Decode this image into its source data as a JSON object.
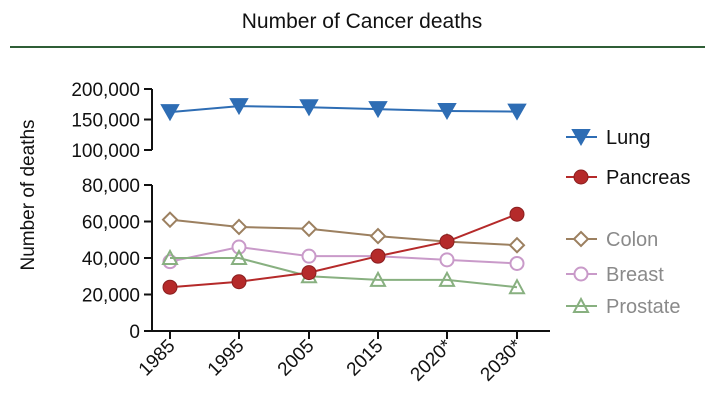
{
  "chart_data": {
    "type": "line",
    "title": "Number of Cancer deaths",
    "xlabel": "",
    "ylabel": "Number of deaths",
    "categories": [
      "1985",
      "1995",
      "2005",
      "2015",
      "2020*",
      "2030*"
    ],
    "y_axis": {
      "broken": true,
      "lower_range": [
        0,
        80000
      ],
      "upper_range": [
        100000,
        200000
      ],
      "lower_ticks": [
        0,
        20000,
        40000,
        60000,
        80000
      ],
      "upper_ticks": [
        100000,
        150000,
        200000
      ],
      "tick_labels_lower": [
        "0",
        "20,000",
        "40,000",
        "60,000",
        "80,000"
      ],
      "tick_labels_upper": [
        "100,000",
        "150,000",
        "200,000"
      ]
    },
    "grid": false,
    "legend_position": "right",
    "series": [
      {
        "name": "Lung",
        "color": "#2e6db4",
        "marker": "triangle-down-filled",
        "values": [
          162000,
          172000,
          170000,
          167000,
          164000,
          163000
        ]
      },
      {
        "name": "Pancreas",
        "color": "#b52a2a",
        "marker": "circle-filled",
        "values": [
          24000,
          27000,
          32000,
          41000,
          49000,
          64000
        ]
      },
      {
        "name": "Colon",
        "color": "#9c8060",
        "marker": "diamond-open",
        "values": [
          61000,
          57000,
          56000,
          52000,
          49000,
          47000
        ]
      },
      {
        "name": "Breast",
        "color": "#c99ac9",
        "marker": "circle-open",
        "values": [
          38000,
          46000,
          41000,
          41000,
          39000,
          37000
        ]
      },
      {
        "name": "Prostate",
        "color": "#88b080",
        "marker": "triangle-up-open",
        "values": [
          40000,
          40000,
          30000,
          28000,
          28000,
          24000
        ]
      }
    ],
    "title_rule_color": "#2f5e36"
  }
}
